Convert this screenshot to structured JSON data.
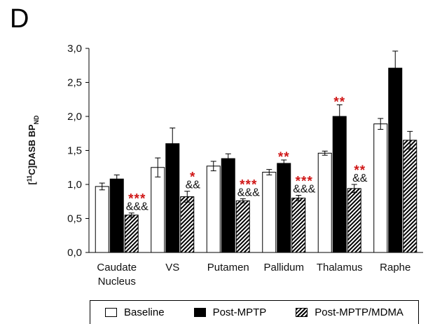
{
  "panel_label": "D",
  "chart_data": {
    "type": "bar",
    "ylabel": "[11C]DASB BP_ND",
    "ylabel_parts": {
      "open": "[",
      "sup": "11",
      "mid": "C]DASB BP",
      "sub": "ND"
    },
    "ylim": [
      0,
      3.0
    ],
    "yticks": [
      "0,0",
      "0,5",
      "1,0",
      "1,5",
      "2,0",
      "2,5",
      "3,0"
    ],
    "ytick_values": [
      0,
      0.5,
      1.0,
      1.5,
      2.0,
      2.5,
      3.0
    ],
    "grid": false,
    "legend_placement": "bottom",
    "categories": [
      [
        "Caudate",
        "Nucleus"
      ],
      [
        "VS"
      ],
      [
        "Putamen"
      ],
      [
        "Pallidum"
      ],
      [
        "Thalamus"
      ],
      [
        "Raphe"
      ]
    ],
    "series": [
      {
        "name": "Baseline",
        "fill": "#ffffff",
        "values": [
          0.97,
          1.25,
          1.27,
          1.18,
          1.46,
          1.89
        ],
        "errors": [
          0.05,
          0.14,
          0.07,
          0.04,
          0.03,
          0.08
        ]
      },
      {
        "name": "Post-MPTP",
        "fill": "#000000",
        "values": [
          1.08,
          1.6,
          1.38,
          1.31,
          2.0,
          2.71
        ],
        "errors": [
          0.06,
          0.23,
          0.07,
          0.05,
          0.17,
          0.25
        ]
      },
      {
        "name": "Post-MPTP/MDMA",
        "fill": "hatch",
        "values": [
          0.55,
          0.82,
          0.76,
          0.8,
          0.94,
          1.65
        ],
        "errors": [
          0.03,
          0.08,
          0.03,
          0.04,
          0.06,
          0.13
        ]
      }
    ],
    "annotations": [
      {
        "category": 0,
        "series": 2,
        "red": "***",
        "black": "&&&"
      },
      {
        "category": 1,
        "series": 2,
        "red": "*",
        "black": "&&"
      },
      {
        "category": 2,
        "series": 2,
        "red": "***",
        "black": "&&&"
      },
      {
        "category": 3,
        "series": 1,
        "red": "**",
        "black": ""
      },
      {
        "category": 3,
        "series": 2,
        "red": "***",
        "black": "&&&"
      },
      {
        "category": 4,
        "series": 1,
        "red": "**",
        "black": ""
      },
      {
        "category": 4,
        "series": 2,
        "red": "**",
        "black": "&&"
      }
    ]
  }
}
